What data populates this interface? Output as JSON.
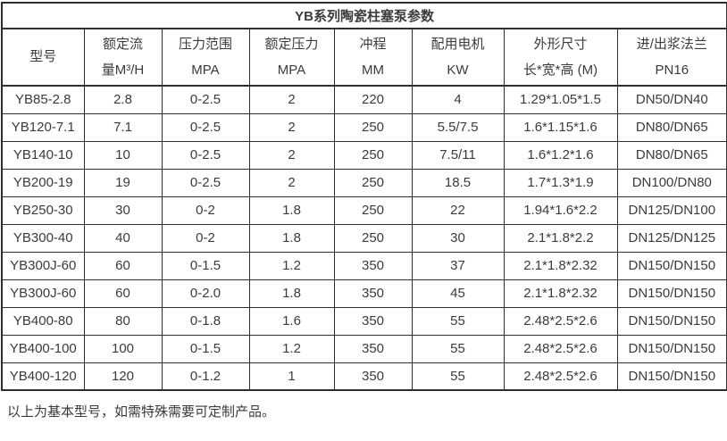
{
  "table": {
    "title": "YB系列陶瓷柱塞泵参数",
    "columns": [
      {
        "line1": "型号",
        "line2": ""
      },
      {
        "line1": "额定流",
        "line2": "量M³/H"
      },
      {
        "line1": "压力范围",
        "line2": "MPA"
      },
      {
        "line1": "额定压力",
        "line2": "MPA"
      },
      {
        "line1": "冲程",
        "line2": "MM"
      },
      {
        "line1": "配用电机",
        "line2": "KW"
      },
      {
        "line1": "外形尺寸",
        "line2": "长*宽*高 (M)"
      },
      {
        "line1": "进/出浆法兰",
        "line2": "PN16"
      }
    ],
    "rows": [
      [
        "YB85-2.8",
        "2.8",
        "0-2.5",
        "2",
        "220",
        "4",
        "1.29*1.05*1.5",
        "DN50/DN40"
      ],
      [
        "YB120-7.1",
        "7.1",
        "0-2.5",
        "2",
        "250",
        "5.5/7.5",
        "1.6*1.15*1.6",
        "DN80/DN65"
      ],
      [
        "YB140-10",
        "10",
        "0-2.5",
        "2",
        "250",
        "7.5/11",
        "1.6*1.2*1.6",
        "DN80/DN65"
      ],
      [
        "YB200-19",
        "19",
        "0-2.5",
        "2",
        "250",
        "18.5",
        "1.7*1.3*1.9",
        "DN100/DN80"
      ],
      [
        "YB250-30",
        "30",
        "0-2",
        "1.8",
        "250",
        "22",
        "1.94*1.6*2.2",
        "DN125/DN100"
      ],
      [
        "YB300-40",
        "40",
        "0-2",
        "1.8",
        "250",
        "30",
        "2.1*1.8*2.2",
        "DN125/DN125"
      ],
      [
        "YB300J-60",
        "60",
        "0-1.5",
        "1.2",
        "350",
        "37",
        "2.1*1.8*2.32",
        "DN150/DN150"
      ],
      [
        "YB300J-60",
        "60",
        "0-2.0",
        "1.8",
        "350",
        "45",
        "2.1*1.8*2.32",
        "DN150/DN150"
      ],
      [
        "YB400-80",
        "80",
        "0-1.8",
        "1.6",
        "350",
        "55",
        "2.48*2.5*2.6",
        "DN150/DN150"
      ],
      [
        "YB400-100",
        "100",
        "0-1.5",
        "1.2",
        "350",
        "55",
        "2.48*2.5*2.6",
        "DN150/DN150"
      ],
      [
        "YB400-120",
        "120",
        "0-1.2",
        "1",
        "350",
        "55",
        "2.48*2.5*2.6",
        "DN150/DN150"
      ]
    ]
  },
  "footer": {
    "note": "以上为基本型号，如需特殊需要可定制产品。"
  },
  "colors": {
    "border": "#2f2f2f",
    "text": "#3b3b3b",
    "background": "#ffffff"
  }
}
